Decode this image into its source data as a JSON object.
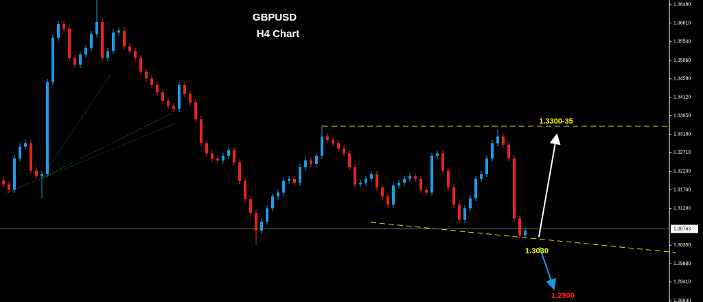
{
  "chart_data": {
    "type": "candlestick",
    "title": "GBPUSD",
    "subtitle": "H4 Chart",
    "annotations": [
      "1.3300-35",
      "1.3030",
      "1.2900"
    ],
    "up_color": "#1e9be6",
    "down_color": "#e8231c",
    "ylim": [
      1.289,
      1.366
    ],
    "yticks": [
      {
        "value": 1.3648,
        "label": "1.36480"
      },
      {
        "value": 1.3601,
        "label": "1.36010"
      },
      {
        "value": 1.3554,
        "label": "1.35540"
      },
      {
        "value": 1.3506,
        "label": "1.35060"
      },
      {
        "value": 1.3459,
        "label": "1.34590"
      },
      {
        "value": 1.3412,
        "label": "1.34120"
      },
      {
        "value": 1.3365,
        "label": "1.33650"
      },
      {
        "value": 1.3318,
        "label": "1.33180"
      },
      {
        "value": 1.3271,
        "label": "1.32710"
      },
      {
        "value": 1.3223,
        "label": "1.32230"
      },
      {
        "value": 1.3176,
        "label": "1.31760"
      },
      {
        "value": 1.3129,
        "label": "1.31290"
      },
      {
        "value": 1.3035,
        "label": "1.30350"
      },
      {
        "value": 1.2988,
        "label": "1.29880"
      },
      {
        "value": 1.2941,
        "label": "1.29410"
      },
      {
        "value": 1.2893,
        "label": "1.28930"
      }
    ],
    "current_price": {
      "value": 1.30763,
      "label": "1.30763"
    },
    "open": [
      1.32,
      1.319,
      1.3176,
      1.3256,
      1.3286,
      1.3295,
      1.3225,
      1.3211,
      1.3216,
      1.3451,
      1.3564,
      1.3599,
      1.3587,
      1.3512,
      1.3495,
      1.3521,
      1.3538,
      1.3573,
      1.3604,
      1.3512,
      1.353,
      1.3577,
      1.3582,
      1.3542,
      1.353,
      1.3512,
      1.3477,
      1.346,
      1.3443,
      1.3425,
      1.3403,
      1.339,
      1.3382,
      1.3443,
      1.342,
      1.3399,
      1.3356,
      1.3295,
      1.3269,
      1.3256,
      1.3251,
      1.3263,
      1.3277,
      1.3246,
      1.3199,
      1.3152,
      1.3117,
      1.3072,
      1.3095,
      1.3129,
      1.3159,
      1.3169,
      1.3199,
      1.3204,
      1.3194,
      1.3234,
      1.3251,
      1.3242,
      1.3263,
      1.3312,
      1.3303,
      1.3295,
      1.3281,
      1.3269,
      1.3234,
      1.319,
      1.3194,
      1.3204,
      1.3216,
      1.3182,
      1.3159,
      1.3138,
      1.3187,
      1.3194,
      1.3204,
      1.3211,
      1.3204,
      1.3176,
      1.3169,
      1.3263,
      1.3269,
      1.3225,
      1.3182,
      1.3138,
      1.31,
      1.3129,
      1.3155,
      1.3204,
      1.3216,
      1.3256,
      1.3295,
      1.3312,
      1.3291,
      1.3256,
      1.3103,
      1.306
    ],
    "high": [
      1.3208,
      1.3198,
      1.3264,
      1.3294,
      1.3303,
      1.3303,
      1.3233,
      1.3224,
      1.3459,
      1.3572,
      1.3607,
      1.3607,
      1.3595,
      1.352,
      1.3529,
      1.3546,
      1.3581,
      1.366,
      1.3612,
      1.3538,
      1.3585,
      1.359,
      1.359,
      1.355,
      1.3538,
      1.352,
      1.3485,
      1.3468,
      1.3451,
      1.3433,
      1.3411,
      1.3398,
      1.3451,
      1.3451,
      1.3428,
      1.3407,
      1.3364,
      1.3303,
      1.3277,
      1.3264,
      1.3271,
      1.3285,
      1.3285,
      1.3254,
      1.3207,
      1.316,
      1.3125,
      1.3103,
      1.3137,
      1.3167,
      1.3177,
      1.3207,
      1.3212,
      1.3212,
      1.3242,
      1.3259,
      1.3259,
      1.3271,
      1.3342,
      1.332,
      1.3311,
      1.3303,
      1.3289,
      1.3277,
      1.3242,
      1.3202,
      1.3212,
      1.3224,
      1.3224,
      1.319,
      1.3167,
      1.3195,
      1.3202,
      1.3212,
      1.3219,
      1.3219,
      1.3212,
      1.3184,
      1.3271,
      1.3277,
      1.3277,
      1.3233,
      1.319,
      1.3146,
      1.3137,
      1.3163,
      1.3212,
      1.3224,
      1.3264,
      1.3303,
      1.333,
      1.332,
      1.3299,
      1.3264,
      1.3111,
      1.308
    ],
    "low": [
      1.3182,
      1.3168,
      1.3168,
      1.3248,
      1.3278,
      1.3217,
      1.3203,
      1.3155,
      1.3208,
      1.3443,
      1.3556,
      1.3579,
      1.3504,
      1.3487,
      1.3487,
      1.3513,
      1.353,
      1.3565,
      1.3504,
      1.3504,
      1.3522,
      1.3569,
      1.3534,
      1.3522,
      1.3504,
      1.3469,
      1.3452,
      1.3435,
      1.3417,
      1.3395,
      1.3382,
      1.3374,
      1.3374,
      1.3412,
      1.3391,
      1.3348,
      1.3287,
      1.3261,
      1.3248,
      1.3243,
      1.3243,
      1.3255,
      1.3238,
      1.3191,
      1.3144,
      1.3109,
      1.3035,
      1.3064,
      1.3087,
      1.3121,
      1.3151,
      1.3161,
      1.3191,
      1.3186,
      1.3186,
      1.3226,
      1.3234,
      1.3234,
      1.3255,
      1.3295,
      1.3287,
      1.3273,
      1.3261,
      1.3226,
      1.3182,
      1.3182,
      1.3186,
      1.3196,
      1.3174,
      1.3151,
      1.313,
      1.313,
      1.3179,
      1.3186,
      1.3196,
      1.3196,
      1.3168,
      1.3161,
      1.3161,
      1.3255,
      1.3217,
      1.3174,
      1.313,
      1.3092,
      1.3092,
      1.3121,
      1.3147,
      1.3196,
      1.3208,
      1.3248,
      1.3287,
      1.3283,
      1.3248,
      1.3095,
      1.3052,
      1.3052
    ],
    "close": [
      1.319,
      1.3176,
      1.3256,
      1.3286,
      1.3295,
      1.3225,
      1.3211,
      1.3216,
      1.3451,
      1.3564,
      1.3599,
      1.3587,
      1.3512,
      1.3495,
      1.3521,
      1.3538,
      1.3573,
      1.3604,
      1.3512,
      1.353,
      1.3577,
      1.3582,
      1.3542,
      1.353,
      1.3512,
      1.3477,
      1.346,
      1.3443,
      1.3425,
      1.3403,
      1.339,
      1.3382,
      1.3443,
      1.342,
      1.3399,
      1.3356,
      1.3295,
      1.3269,
      1.3256,
      1.3251,
      1.3263,
      1.3277,
      1.3246,
      1.3199,
      1.3152,
      1.3117,
      1.3072,
      1.3095,
      1.3129,
      1.3159,
      1.3169,
      1.3199,
      1.3204,
      1.3194,
      1.3234,
      1.3251,
      1.3242,
      1.3263,
      1.3312,
      1.3303,
      1.3295,
      1.3281,
      1.3269,
      1.3234,
      1.319,
      1.3194,
      1.3204,
      1.3216,
      1.3182,
      1.3159,
      1.3138,
      1.3187,
      1.3194,
      1.3204,
      1.3211,
      1.3204,
      1.3176,
      1.3169,
      1.3263,
      1.3269,
      1.3225,
      1.3182,
      1.3138,
      1.31,
      1.3129,
      1.3155,
      1.3204,
      1.3216,
      1.3256,
      1.3295,
      1.3312,
      1.3291,
      1.3256,
      1.3103,
      1.306,
      1.3072
    ]
  }
}
